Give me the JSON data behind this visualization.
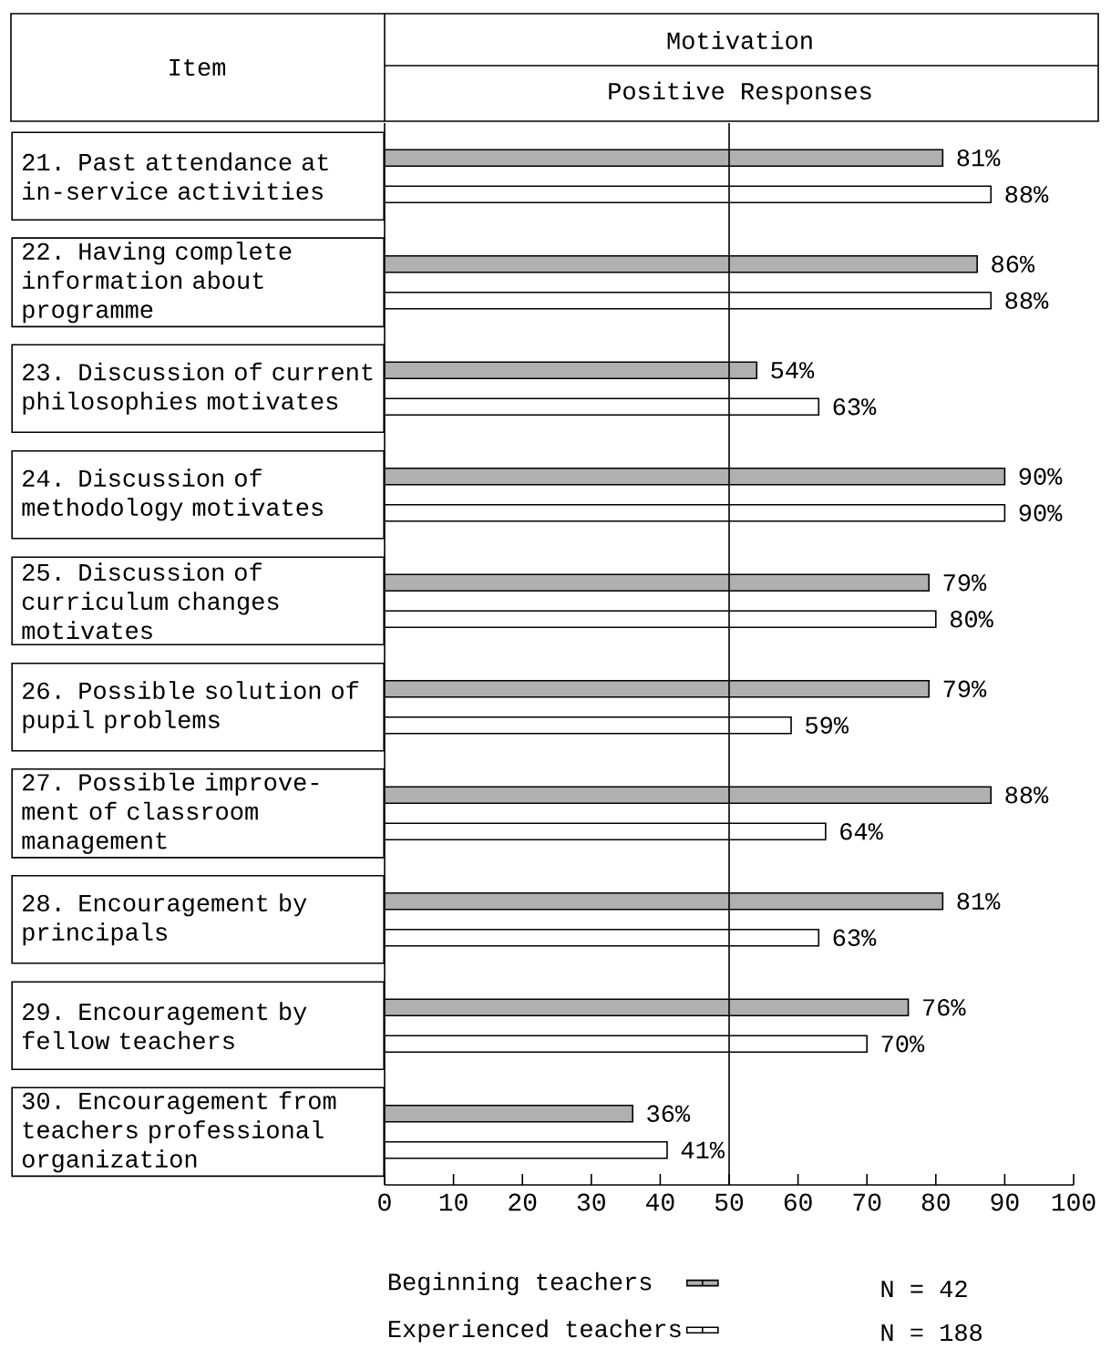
{
  "chart_data": {
    "type": "bar",
    "orientation": "horizontal",
    "title": "Motivation",
    "subtitle": "Positive Responses",
    "ylabel": "Item",
    "categories": [
      "21. Past attendance at in-service activities",
      "22. Having complete information about programme",
      "23. Discussion of current philosophies motivates",
      "24. Discussion of methodology motivates",
      "25. Discussion of curriculum changes motivates",
      "26. Possible solution of pupil problems",
      "27. Possible improve- ment of classroom management",
      "28. Encouragement by principals",
      "29. Encouragement by fellow teachers",
      "30. Encouragement from teachers professional organization"
    ],
    "series": [
      {
        "name": "Beginning teachers",
        "color": "#b0b0b0",
        "values": [
          81,
          86,
          54,
          90,
          79,
          79,
          88,
          81,
          76,
          36
        ],
        "value_labels": [
          "81%",
          "86%",
          "54%",
          "90%",
          "79%",
          "79%",
          "88%",
          "81%",
          "76%",
          "36%"
        ]
      },
      {
        "name": "Experienced teachers",
        "color": "#ffffff",
        "values": [
          88,
          88,
          63,
          90,
          80,
          59,
          64,
          63,
          70,
          41
        ],
        "value_labels": [
          "88%",
          "88%",
          "63%",
          "90%",
          "80%",
          "59%",
          "64%",
          "63%",
          "70%",
          "41%"
        ]
      }
    ],
    "xlim": [
      0,
      100
    ],
    "xticks": [
      0,
      10,
      20,
      30,
      40,
      50,
      60,
      70,
      80,
      90,
      100
    ],
    "ref_lines": [
      {
        "axis": "x",
        "value": 50
      }
    ],
    "legend": "bottom",
    "annotations": [
      "N =  42",
      "N = 188"
    ]
  }
}
